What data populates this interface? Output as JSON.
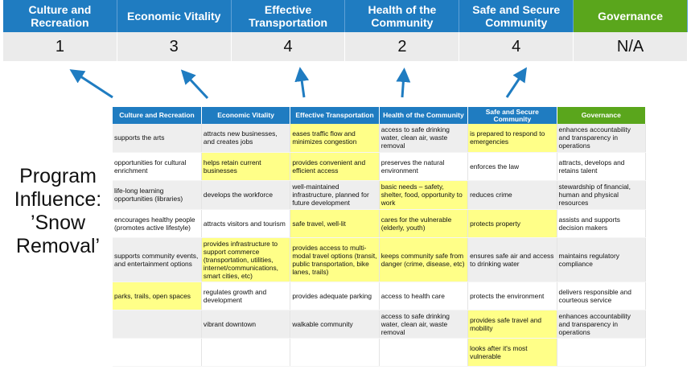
{
  "top": {
    "headers": [
      "Culture and Recreation",
      "Economic Vitality",
      "Effective Transportation",
      "Health of the Community",
      "Safe and Secure Community",
      "Governance"
    ],
    "scores": [
      "1",
      "3",
      "4",
      "2",
      "4",
      "N/A"
    ]
  },
  "label": {
    "line1": "Program",
    "line2": "Influence:",
    "line3": "’Snow",
    "line4": "Removal’"
  },
  "colors": {
    "blue": "#1f7cc1",
    "green": "#5aa61c",
    "highlight": "#ffff88"
  },
  "table": {
    "headers": [
      "Culture and Recreation",
      "Economic Vitality",
      "Effective Transportation",
      "Health of the Community",
      "Safe and Secure Community",
      "Governance"
    ],
    "rows": [
      {
        "cells": [
          "supports the arts",
          "attracts new businesses, and creates jobs",
          "eases traffic flow and minimizes congestion",
          "access to safe drinking water, clean air, waste removal",
          "is prepared to respond to emergencies",
          "enhances accountability and transparency in operations"
        ],
        "highlighted": [
          false,
          false,
          true,
          false,
          true,
          false
        ]
      },
      {
        "cells": [
          "opportunities for cultural enrichment",
          "helps retain current businesses",
          "provides convenient and efficient access",
          "preserves the natural environment",
          "enforces the law",
          "attracts, develops and retains talent"
        ],
        "highlighted": [
          false,
          true,
          true,
          false,
          false,
          false
        ]
      },
      {
        "cells": [
          "life-long learning opportunities (libraries)",
          "develops the workforce",
          "well-maintained infrastructure, planned for future development",
          "basic needs – safety, shelter, food, opportunity to work",
          "reduces crime",
          "stewardship of financial, human and physical resources"
        ],
        "highlighted": [
          false,
          false,
          false,
          true,
          false,
          false
        ]
      },
      {
        "cells": [
          "encourages healthy people (promotes active lifestyle)",
          "attracts visitors and tourism",
          "safe travel, well-lit",
          "cares for the vulnerable (elderly, youth)",
          "protects property",
          "assists and supports decision makers"
        ],
        "highlighted": [
          false,
          false,
          true,
          true,
          true,
          false
        ]
      },
      {
        "cells": [
          "supports community events, and entertainment options",
          "provides infrastructure to support commerce (transportation, utilities, internet/communications, smart cities, etc)",
          "provides access to multi-modal travel options (transit, public transportation, bike lanes, trails)",
          "keeps community safe from danger (crime, disease, etc)",
          "ensures safe air and access to drinking water",
          "maintains regulatory compliance"
        ],
        "highlighted": [
          false,
          true,
          true,
          true,
          false,
          false
        ]
      },
      {
        "cells": [
          "parks, trails, open spaces",
          "regulates growth and development",
          "provides adequate parking",
          "access to health care",
          "protects the environment",
          "delivers responsible and courteous service"
        ],
        "highlighted": [
          true,
          false,
          false,
          false,
          false,
          false
        ]
      },
      {
        "cells": [
          "",
          "vibrant downtown",
          "walkable community",
          "access to safe drinking water, clean air, waste removal",
          "provides safe travel and mobility",
          "enhances accountability and transparency in operations"
        ],
        "highlighted": [
          false,
          false,
          false,
          false,
          true,
          false
        ]
      },
      {
        "cells": [
          "",
          "",
          "",
          "",
          "looks after it's most vulnerable",
          ""
        ],
        "highlighted": [
          false,
          false,
          false,
          false,
          true,
          false
        ]
      }
    ]
  }
}
